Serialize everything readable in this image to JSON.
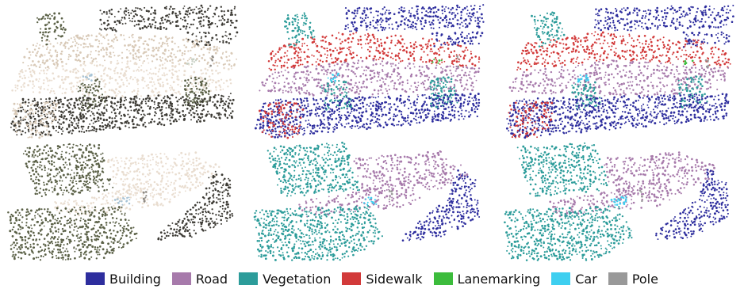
{
  "legend": {
    "items": [
      {
        "label": "Building",
        "color": "#2e2e9e"
      },
      {
        "label": "Road",
        "color": "#a77aab"
      },
      {
        "label": "Vegetation",
        "color": "#2c9c9a"
      },
      {
        "label": "Sidewalk",
        "color": "#d23a3a"
      },
      {
        "label": "Lanemarking",
        "color": "#3cbc3c"
      },
      {
        "label": "Car",
        "color": "#3ecff0"
      },
      {
        "label": "Pole",
        "color": "#999999"
      }
    ]
  },
  "rgb_palette": {
    "building": "#3d3b35",
    "road": "#e9ddd0",
    "vegetation": "#5b6147",
    "sidewalk": "#d8c9b7",
    "lanemarking": "#c7d0c4",
    "car": "#a8c4d6",
    "pole": "#8e8a84"
  }
}
